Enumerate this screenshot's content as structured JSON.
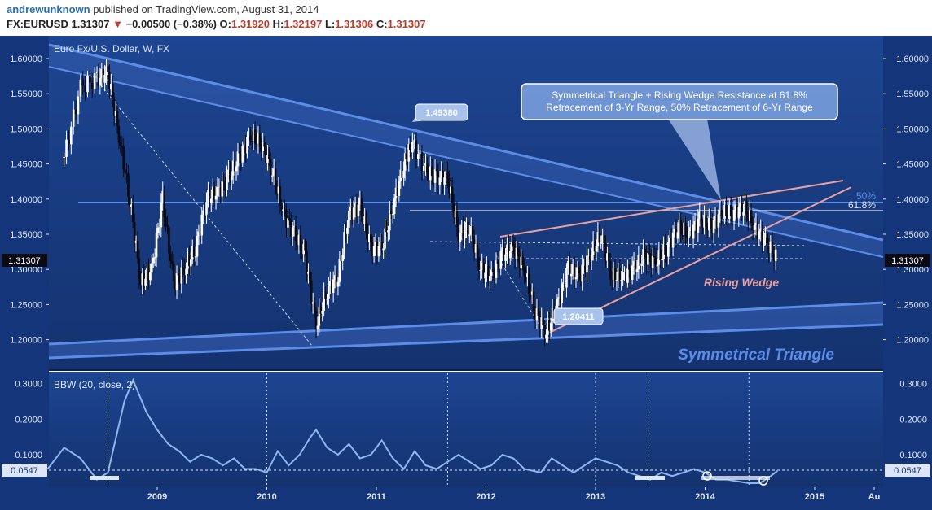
{
  "header": {
    "author": "andrewunknown",
    "published": "published on TradingView.com, August 31, 2014",
    "symbol": "FX:EURUSD",
    "last": "1.31307",
    "change_arrow": "▼",
    "change": "−0.00500 (−0.38%)",
    "o_label": "O:",
    "o_val": "1.31920",
    "h_label": "H:",
    "h_val": "1.32197",
    "l_label": "L:",
    "l_val": "1.31306",
    "c_label": "C:",
    "c_val": "1.31307"
  },
  "colors": {
    "background": "#17397d",
    "candle_up": "#ffffff",
    "candle_down": "#0a0a14",
    "trendline": "#5b8de8",
    "wedge": "#e8a0a0",
    "bbw_line": "#8fb6f0"
  },
  "chart_data": [
    {
      "type": "candlestick",
      "title": "Euro Fx/U.S. Dollar, W, FX",
      "ylim": [
        1.17,
        1.63
      ],
      "y_ticks": [
        "1.60000",
        "1.55000",
        "1.50000",
        "1.45000",
        "1.40000",
        "1.35000",
        "1.30000",
        "1.25000",
        "1.20000"
      ],
      "x_ticks": [
        "2009",
        "2010",
        "2011",
        "2012",
        "2013",
        "2014",
        "2015",
        "Au"
      ],
      "last_price": "1.31307",
      "close_series": [
        {
          "t": 2008.15,
          "v": 1.46
        },
        {
          "t": 2008.3,
          "v": 1.56
        },
        {
          "t": 2008.45,
          "v": 1.57
        },
        {
          "t": 2008.55,
          "v": 1.58
        },
        {
          "t": 2008.65,
          "v": 1.49
        },
        {
          "t": 2008.75,
          "v": 1.4
        },
        {
          "t": 2008.85,
          "v": 1.28
        },
        {
          "t": 2008.95,
          "v": 1.3
        },
        {
          "t": 2009.05,
          "v": 1.4
        },
        {
          "t": 2009.15,
          "v": 1.28
        },
        {
          "t": 2009.25,
          "v": 1.3
        },
        {
          "t": 2009.35,
          "v": 1.33
        },
        {
          "t": 2009.45,
          "v": 1.4
        },
        {
          "t": 2009.55,
          "v": 1.41
        },
        {
          "t": 2009.65,
          "v": 1.43
        },
        {
          "t": 2009.75,
          "v": 1.46
        },
        {
          "t": 2009.85,
          "v": 1.49
        },
        {
          "t": 2009.95,
          "v": 1.48
        },
        {
          "t": 2010.05,
          "v": 1.44
        },
        {
          "t": 2010.15,
          "v": 1.38
        },
        {
          "t": 2010.25,
          "v": 1.35
        },
        {
          "t": 2010.35,
          "v": 1.32
        },
        {
          "t": 2010.45,
          "v": 1.22
        },
        {
          "t": 2010.55,
          "v": 1.27
        },
        {
          "t": 2010.65,
          "v": 1.29
        },
        {
          "t": 2010.75,
          "v": 1.38
        },
        {
          "t": 2010.85,
          "v": 1.39
        },
        {
          "t": 2010.95,
          "v": 1.33
        },
        {
          "t": 2011.05,
          "v": 1.33
        },
        {
          "t": 2011.15,
          "v": 1.39
        },
        {
          "t": 2011.25,
          "v": 1.45
        },
        {
          "t": 2011.33,
          "v": 1.48
        },
        {
          "t": 2011.45,
          "v": 1.44
        },
        {
          "t": 2011.55,
          "v": 1.43
        },
        {
          "t": 2011.65,
          "v": 1.43
        },
        {
          "t": 2011.75,
          "v": 1.35
        },
        {
          "t": 2011.85,
          "v": 1.36
        },
        {
          "t": 2011.95,
          "v": 1.3
        },
        {
          "t": 2012.05,
          "v": 1.29
        },
        {
          "t": 2012.15,
          "v": 1.32
        },
        {
          "t": 2012.25,
          "v": 1.33
        },
        {
          "t": 2012.35,
          "v": 1.3
        },
        {
          "t": 2012.45,
          "v": 1.24
        },
        {
          "t": 2012.55,
          "v": 1.21
        },
        {
          "t": 2012.65,
          "v": 1.25
        },
        {
          "t": 2012.75,
          "v": 1.3
        },
        {
          "t": 2012.85,
          "v": 1.29
        },
        {
          "t": 2012.95,
          "v": 1.32
        },
        {
          "t": 2013.05,
          "v": 1.35
        },
        {
          "t": 2013.15,
          "v": 1.29
        },
        {
          "t": 2013.25,
          "v": 1.29
        },
        {
          "t": 2013.35,
          "v": 1.3
        },
        {
          "t": 2013.45,
          "v": 1.32
        },
        {
          "t": 2013.55,
          "v": 1.31
        },
        {
          "t": 2013.65,
          "v": 1.33
        },
        {
          "t": 2013.75,
          "v": 1.36
        },
        {
          "t": 2013.85,
          "v": 1.35
        },
        {
          "t": 2013.95,
          "v": 1.37
        },
        {
          "t": 2014.05,
          "v": 1.36
        },
        {
          "t": 2014.15,
          "v": 1.38
        },
        {
          "t": 2014.25,
          "v": 1.38
        },
        {
          "t": 2014.35,
          "v": 1.39
        },
        {
          "t": 2014.45,
          "v": 1.36
        },
        {
          "t": 2014.55,
          "v": 1.34
        },
        {
          "t": 2014.66,
          "v": 1.313
        }
      ],
      "annotations": {
        "high_label": "1.49380",
        "low_label": "1.20411",
        "callout": "Symmetrical Triangle + Rising Wedge Resistance at 61.8% Retracement of 3-Yr Range, 50% Retracement of 6-Yr Range",
        "fib_50": "50%",
        "fib_618": "61.8%",
        "wedge_label": "Rising Wedge",
        "triangle_label": "Symmetrical Triangle"
      }
    },
    {
      "type": "line",
      "title": "BBW (20, close, 2)",
      "ylim": [
        0.0,
        0.32
      ],
      "y_ticks": [
        "0.3000",
        "0.2000",
        "0.1000"
      ],
      "last_value": "0.0547",
      "series": [
        {
          "t": 2008.0,
          "v": 0.06
        },
        {
          "t": 2008.15,
          "v": 0.12
        },
        {
          "t": 2008.3,
          "v": 0.09
        },
        {
          "t": 2008.45,
          "v": 0.03
        },
        {
          "t": 2008.55,
          "v": 0.05
        },
        {
          "t": 2008.7,
          "v": 0.25
        },
        {
          "t": 2008.78,
          "v": 0.31
        },
        {
          "t": 2008.9,
          "v": 0.22
        },
        {
          "t": 2009.0,
          "v": 0.17
        },
        {
          "t": 2009.1,
          "v": 0.13
        },
        {
          "t": 2009.2,
          "v": 0.11
        },
        {
          "t": 2009.3,
          "v": 0.08
        },
        {
          "t": 2009.4,
          "v": 0.1
        },
        {
          "t": 2009.5,
          "v": 0.09
        },
        {
          "t": 2009.6,
          "v": 0.07
        },
        {
          "t": 2009.7,
          "v": 0.09
        },
        {
          "t": 2009.8,
          "v": 0.06
        },
        {
          "t": 2009.9,
          "v": 0.06
        },
        {
          "t": 2010.0,
          "v": 0.05
        },
        {
          "t": 2010.1,
          "v": 0.11
        },
        {
          "t": 2010.2,
          "v": 0.07
        },
        {
          "t": 2010.3,
          "v": 0.1
        },
        {
          "t": 2010.4,
          "v": 0.15
        },
        {
          "t": 2010.45,
          "v": 0.17
        },
        {
          "t": 2010.55,
          "v": 0.12
        },
        {
          "t": 2010.65,
          "v": 0.1
        },
        {
          "t": 2010.75,
          "v": 0.13
        },
        {
          "t": 2010.85,
          "v": 0.09
        },
        {
          "t": 2010.95,
          "v": 0.1
        },
        {
          "t": 2011.05,
          "v": 0.14
        },
        {
          "t": 2011.15,
          "v": 0.09
        },
        {
          "t": 2011.25,
          "v": 0.06
        },
        {
          "t": 2011.35,
          "v": 0.11
        },
        {
          "t": 2011.45,
          "v": 0.07
        },
        {
          "t": 2011.55,
          "v": 0.06
        },
        {
          "t": 2011.65,
          "v": 0.08
        },
        {
          "t": 2011.75,
          "v": 0.1
        },
        {
          "t": 2011.85,
          "v": 0.08
        },
        {
          "t": 2011.95,
          "v": 0.06
        },
        {
          "t": 2012.05,
          "v": 0.07
        },
        {
          "t": 2012.15,
          "v": 0.1
        },
        {
          "t": 2012.25,
          "v": 0.09
        },
        {
          "t": 2012.35,
          "v": 0.06
        },
        {
          "t": 2012.5,
          "v": 0.05
        },
        {
          "t": 2012.6,
          "v": 0.09
        },
        {
          "t": 2012.7,
          "v": 0.07
        },
        {
          "t": 2012.8,
          "v": 0.05
        },
        {
          "t": 2012.9,
          "v": 0.07
        },
        {
          "t": 2013.0,
          "v": 0.09
        },
        {
          "t": 2013.1,
          "v": 0.08
        },
        {
          "t": 2013.2,
          "v": 0.07
        },
        {
          "t": 2013.3,
          "v": 0.05
        },
        {
          "t": 2013.4,
          "v": 0.04
        },
        {
          "t": 2013.5,
          "v": 0.03
        },
        {
          "t": 2013.6,
          "v": 0.05
        },
        {
          "t": 2013.7,
          "v": 0.04
        },
        {
          "t": 2013.8,
          "v": 0.05
        },
        {
          "t": 2013.9,
          "v": 0.06
        },
        {
          "t": 2014.0,
          "v": 0.05
        },
        {
          "t": 2014.1,
          "v": 0.03
        },
        {
          "t": 2014.2,
          "v": 0.03
        },
        {
          "t": 2014.3,
          "v": 0.025
        },
        {
          "t": 2014.4,
          "v": 0.02
        },
        {
          "t": 2014.5,
          "v": 0.02
        },
        {
          "t": 2014.6,
          "v": 0.04
        },
        {
          "t": 2014.66,
          "v": 0.0547
        }
      ]
    }
  ]
}
